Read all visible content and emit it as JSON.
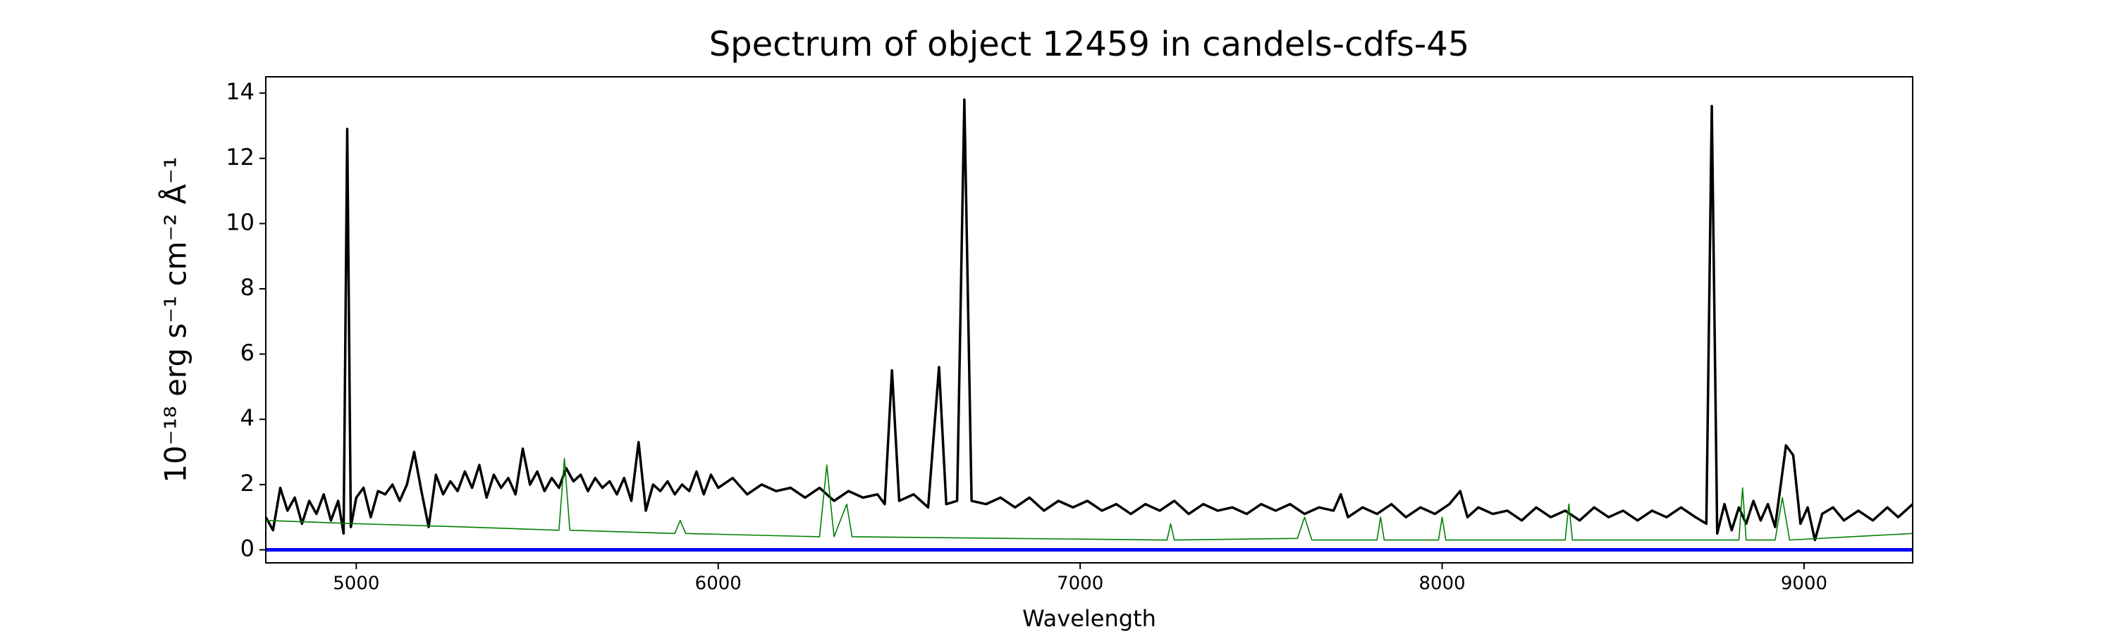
{
  "chart_data": {
    "type": "line",
    "title": "Spectrum of object 12459 in candels-cdfs-45",
    "xlabel": "Wavelength",
    "ylabel": "10⁻¹⁸ erg s⁻¹ cm⁻² Å⁻¹",
    "xlim": [
      4750,
      9300
    ],
    "ylim": [
      -0.4,
      14.5
    ],
    "xticks": [
      5000,
      6000,
      7000,
      8000,
      9000
    ],
    "yticks": [
      0,
      2,
      4,
      6,
      8,
      10,
      12,
      14
    ],
    "grid": false,
    "series": [
      {
        "color": "#000000",
        "x": [
          4750,
          4770,
          4790,
          4810,
          4830,
          4850,
          4870,
          4890,
          4910,
          4930,
          4950,
          4965,
          4975,
          4985,
          5000,
          5020,
          5040,
          5060,
          5080,
          5100,
          5120,
          5140,
          5160,
          5180,
          5200,
          5220,
          5240,
          5260,
          5280,
          5300,
          5320,
          5340,
          5360,
          5380,
          5400,
          5420,
          5440,
          5460,
          5480,
          5500,
          5520,
          5540,
          5560,
          5580,
          5600,
          5620,
          5640,
          5660,
          5680,
          5700,
          5720,
          5740,
          5760,
          5780,
          5800,
          5820,
          5840,
          5860,
          5880,
          5900,
          5920,
          5940,
          5960,
          5980,
          6000,
          6040,
          6080,
          6120,
          6160,
          6200,
          6240,
          6280,
          6320,
          6360,
          6400,
          6440,
          6460,
          6480,
          6500,
          6540,
          6580,
          6610,
          6630,
          6660,
          6680,
          6700,
          6740,
          6780,
          6820,
          6860,
          6900,
          6940,
          6980,
          7020,
          7060,
          7100,
          7140,
          7180,
          7220,
          7260,
          7300,
          7340,
          7380,
          7420,
          7460,
          7500,
          7540,
          7580,
          7620,
          7660,
          7700,
          7720,
          7740,
          7780,
          7820,
          7860,
          7900,
          7940,
          7980,
          8020,
          8050,
          8070,
          8100,
          8140,
          8180,
          8220,
          8260,
          8300,
          8340,
          8380,
          8420,
          8460,
          8500,
          8540,
          8580,
          8620,
          8660,
          8700,
          8730,
          8745,
          8760,
          8780,
          8800,
          8820,
          8840,
          8860,
          8880,
          8900,
          8920,
          8950,
          8970,
          8990,
          9010,
          9030,
          9050,
          9080,
          9110,
          9150,
          9190,
          9230,
          9260,
          9300
        ],
        "values": [
          1.0,
          0.6,
          1.9,
          1.2,
          1.6,
          0.8,
          1.5,
          1.1,
          1.7,
          0.9,
          1.5,
          0.5,
          12.9,
          0.7,
          1.6,
          1.9,
          1.0,
          1.8,
          1.7,
          2.0,
          1.5,
          2.0,
          3.0,
          1.8,
          0.7,
          2.3,
          1.7,
          2.1,
          1.8,
          2.4,
          1.9,
          2.6,
          1.6,
          2.3,
          1.9,
          2.2,
          1.7,
          3.1,
          2.0,
          2.4,
          1.8,
          2.2,
          1.9,
          2.5,
          2.1,
          2.3,
          1.8,
          2.2,
          1.9,
          2.1,
          1.7,
          2.2,
          1.5,
          3.3,
          1.2,
          2.0,
          1.8,
          2.1,
          1.7,
          2.0,
          1.8,
          2.4,
          1.7,
          2.3,
          1.9,
          2.2,
          1.7,
          2.0,
          1.8,
          1.9,
          1.6,
          1.9,
          1.5,
          1.8,
          1.6,
          1.7,
          1.4,
          5.5,
          1.5,
          1.7,
          1.3,
          5.6,
          1.4,
          1.5,
          13.8,
          1.5,
          1.4,
          1.6,
          1.3,
          1.6,
          1.2,
          1.5,
          1.3,
          1.5,
          1.2,
          1.4,
          1.1,
          1.4,
          1.2,
          1.5,
          1.1,
          1.4,
          1.2,
          1.3,
          1.1,
          1.4,
          1.2,
          1.4,
          1.1,
          1.3,
          1.2,
          1.7,
          1.0,
          1.3,
          1.1,
          1.4,
          1.0,
          1.3,
          1.1,
          1.4,
          1.8,
          1.0,
          1.3,
          1.1,
          1.2,
          0.9,
          1.3,
          1.0,
          1.2,
          0.9,
          1.3,
          1.0,
          1.2,
          0.9,
          1.2,
          1.0,
          1.3,
          1.0,
          0.8,
          13.6,
          0.5,
          1.4,
          0.6,
          1.3,
          0.8,
          1.5,
          0.9,
          1.4,
          0.7,
          3.2,
          2.9,
          0.8,
          1.3,
          0.3,
          1.1,
          1.3,
          0.9,
          1.2,
          0.9,
          1.3,
          1.0,
          1.4
        ]
      },
      {
        "color": "#008000",
        "x": [
          4750,
          5000,
          5300,
          5560,
          5575,
          5590,
          5880,
          5895,
          5910,
          6280,
          6300,
          6320,
          6355,
          6370,
          6800,
          7240,
          7250,
          7260,
          7600,
          7620,
          7640,
          7820,
          7830,
          7840,
          7990,
          8000,
          8010,
          8340,
          8350,
          8360,
          8820,
          8830,
          8840,
          8920,
          8940,
          8960,
          9300
        ],
        "values": [
          0.9,
          0.8,
          0.7,
          0.6,
          2.8,
          0.6,
          0.5,
          0.9,
          0.5,
          0.4,
          2.6,
          0.4,
          1.4,
          0.4,
          0.35,
          0.3,
          0.8,
          0.3,
          0.35,
          1.0,
          0.3,
          0.3,
          1.0,
          0.3,
          0.3,
          1.0,
          0.3,
          0.3,
          1.4,
          0.3,
          0.3,
          1.9,
          0.3,
          0.3,
          1.6,
          0.3,
          0.5
        ]
      },
      {
        "color": "#0000ff",
        "x": [
          4750,
          9300
        ],
        "values": [
          0,
          0
        ]
      }
    ]
  }
}
